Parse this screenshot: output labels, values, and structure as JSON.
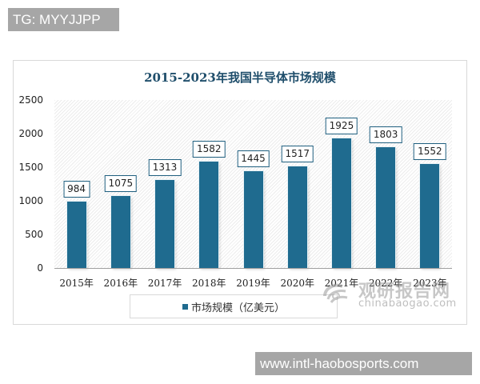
{
  "overlay": {
    "top_tag": "TG: MYYJJPP",
    "bottom_tag": "www.intl-haobosports.com"
  },
  "watermark": {
    "cn_text": "观研报告网",
    "en_text": "chinabaogao.com",
    "icon": "swirl-logo-icon"
  },
  "colors": {
    "bar": "#1f6b8f",
    "title": "#1f4e6b",
    "label_border": "#1f5f7f",
    "tag_bg": "#a6a6a6"
  },
  "chart_data": {
    "type": "bar",
    "title": "2015-2023年我国半导体市场规模",
    "categories": [
      "2015年",
      "2016年",
      "2017年",
      "2018年",
      "2019年",
      "2020年",
      "2021年",
      "2022年",
      "2023年"
    ],
    "series": [
      {
        "name": "市场规模（亿美元）",
        "values": [
          984,
          1075,
          1313,
          1582,
          1445,
          1517,
          1925,
          1803,
          1552
        ]
      }
    ],
    "xlabel": "",
    "ylabel": "",
    "ylim": [
      0,
      2500
    ],
    "yticks": [
      "0",
      "500",
      "1000",
      "1500",
      "2000",
      "2500"
    ],
    "grid": false,
    "legend_position": "bottom",
    "data_labels": true
  }
}
